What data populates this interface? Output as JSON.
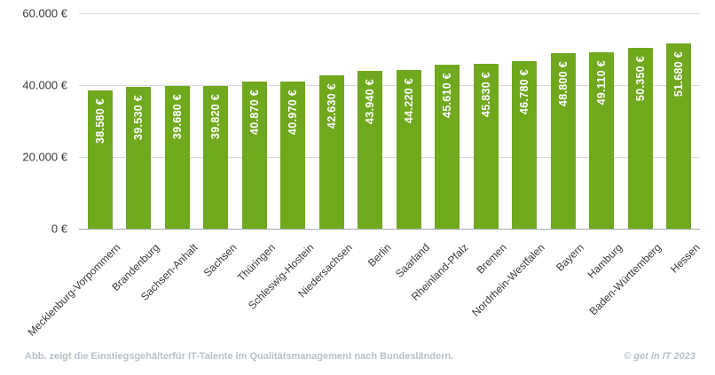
{
  "chart_data": {
    "type": "bar",
    "title": "",
    "xlabel": "",
    "ylabel": "",
    "ylim": [
      0,
      60000
    ],
    "grid": true,
    "legend": false,
    "bar_color": "#70a81e",
    "categories": [
      "Mecklenburg-Vorpommern",
      "Brandenburg",
      "Sachsen-Anhalt",
      "Sachsen",
      "Thüringen",
      "Schleswig-Hostein",
      "Niedersachsen",
      "Berlin",
      "Saarland",
      "Rheinland-Pfalz",
      "Bremen",
      "Nordrhein-Westfalen",
      "Bayern",
      "Hamburg",
      "Baden-Württemberg",
      "Hessen"
    ],
    "values": [
      38580,
      39530,
      39680,
      39820,
      40870,
      40970,
      42630,
      43940,
      44220,
      45610,
      45830,
      46780,
      48800,
      49110,
      50350,
      51680
    ],
    "value_labels": [
      "38.580 €",
      "39.530 €",
      "39.680 €",
      "39.820 €",
      "40.870 €",
      "40.970 €",
      "42.630 €",
      "43.940 €",
      "44.220 €",
      "45.610 €",
      "45.830 €",
      "46.780 €",
      "48.800 €",
      "49.110 €",
      "50.350 €",
      "51.680 €"
    ],
    "y_ticks": [
      {
        "value": 60000,
        "label": "60.000 €"
      },
      {
        "value": 40000,
        "label": "40.000 €"
      },
      {
        "value": 20000,
        "label": "20.000 €"
      },
      {
        "value": 0,
        "label": "0 €"
      }
    ]
  },
  "footer": {
    "caption": "Abb. zeigt die Einstiegsgehälterfür IT-Talente im Qualitätsmanagement nach Bundesländern.",
    "copyright": "© get in IT 2023"
  },
  "colors": {
    "bar": "#70a81e",
    "grid": "#d7d7d7",
    "axis_line": "#a4acb4",
    "tick_text": "#3b3b3b",
    "value_text": "#ffffff",
    "footer_text": "#b7c1ca"
  }
}
